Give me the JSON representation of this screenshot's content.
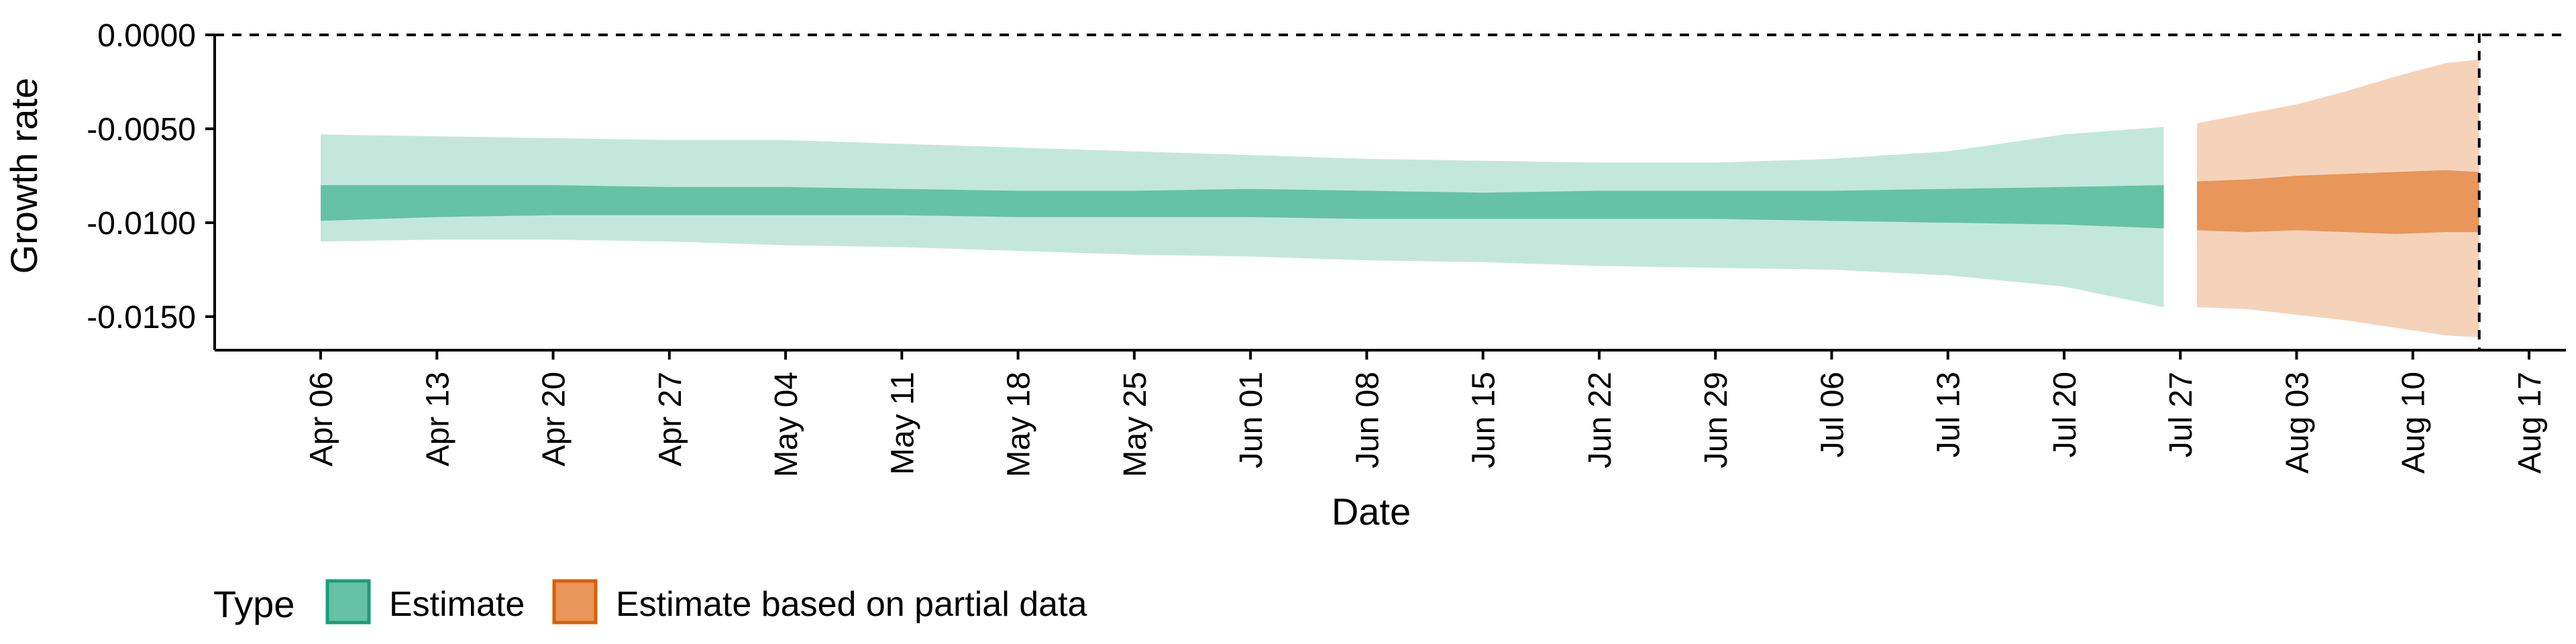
{
  "chart_data": {
    "type": "area",
    "title": "",
    "xlabel": "Date",
    "ylabel": "Growth rate",
    "x_axis": {
      "type": "date",
      "tick_dates": [
        "2020-04-06",
        "2020-04-13",
        "2020-04-20",
        "2020-04-27",
        "2020-05-04",
        "2020-05-11",
        "2020-05-18",
        "2020-05-25",
        "2020-06-01",
        "2020-06-08",
        "2020-06-15",
        "2020-06-22",
        "2020-06-29",
        "2020-07-06",
        "2020-07-13",
        "2020-07-20",
        "2020-07-27",
        "2020-08-03",
        "2020-08-10",
        "2020-08-17"
      ],
      "tick_labels": [
        "Apr 06",
        "Apr 13",
        "Apr 20",
        "Apr 27",
        "May 04",
        "May 11",
        "May 18",
        "May 25",
        "Jun 01",
        "Jun 08",
        "Jun 15",
        "Jun 22",
        "Jun 29",
        "Jul 06",
        "Jul 13",
        "Jul 20",
        "Jul 27",
        "Aug 03",
        "Aug 10",
        "Aug 17"
      ],
      "xlim": [
        "2019-12-13",
        "2020-08-19"
      ]
    },
    "y_axis": {
      "ylim": [
        -0.0168,
        0.0001
      ],
      "ticks": [
        0,
        -0.005,
        -0.01,
        -0.015
      ],
      "tick_labels": [
        "0.0000",
        "-0.0050",
        "-0.0100",
        "-0.0150"
      ]
    },
    "reference_lines": [
      {
        "orientation": "horizontal",
        "y": 0,
        "style": "dashed"
      },
      {
        "orientation": "vertical",
        "x": "2020-08-14",
        "style": "dashed"
      }
    ],
    "legend": {
      "title": "Type",
      "position": "bottom-left",
      "entries": [
        {
          "label": "Estimate",
          "fill": "#66c2a5",
          "border": "#1b9e77"
        },
        {
          "label": "Estimate based on partial data",
          "fill": "#e8965a",
          "border": "#d95f02"
        }
      ]
    },
    "series": [
      {
        "name": "Estimate",
        "inner_color": "#66c2a5",
        "outer_color": "#c4e7dc",
        "points": [
          {
            "x": "2020-04-06",
            "inner": [
              -0.0099,
              -0.008
            ],
            "outer": [
              -0.011,
              -0.0053
            ]
          },
          {
            "x": "2020-04-13",
            "inner": [
              -0.0097,
              -0.008
            ],
            "outer": [
              -0.0109,
              -0.0054
            ]
          },
          {
            "x": "2020-04-20",
            "inner": [
              -0.0096,
              -0.008
            ],
            "outer": [
              -0.0109,
              -0.0055
            ]
          },
          {
            "x": "2020-04-27",
            "inner": [
              -0.0096,
              -0.0081
            ],
            "outer": [
              -0.011,
              -0.0056
            ]
          },
          {
            "x": "2020-05-04",
            "inner": [
              -0.0096,
              -0.0081
            ],
            "outer": [
              -0.0112,
              -0.0056
            ]
          },
          {
            "x": "2020-05-11",
            "inner": [
              -0.0096,
              -0.0082
            ],
            "outer": [
              -0.0113,
              -0.0058
            ]
          },
          {
            "x": "2020-05-18",
            "inner": [
              -0.0097,
              -0.0083
            ],
            "outer": [
              -0.0115,
              -0.006
            ]
          },
          {
            "x": "2020-05-25",
            "inner": [
              -0.0097,
              -0.0083
            ],
            "outer": [
              -0.0117,
              -0.0062
            ]
          },
          {
            "x": "2020-06-01",
            "inner": [
              -0.0097,
              -0.0082
            ],
            "outer": [
              -0.0118,
              -0.0064
            ]
          },
          {
            "x": "2020-06-08",
            "inner": [
              -0.0098,
              -0.0083
            ],
            "outer": [
              -0.012,
              -0.0066
            ]
          },
          {
            "x": "2020-06-15",
            "inner": [
              -0.0098,
              -0.0084
            ],
            "outer": [
              -0.0121,
              -0.0067
            ]
          },
          {
            "x": "2020-06-22",
            "inner": [
              -0.0098,
              -0.0083
            ],
            "outer": [
              -0.0123,
              -0.0068
            ]
          },
          {
            "x": "2020-06-29",
            "inner": [
              -0.0098,
              -0.0083
            ],
            "outer": [
              -0.0124,
              -0.0068
            ]
          },
          {
            "x": "2020-07-06",
            "inner": [
              -0.0099,
              -0.0083
            ],
            "outer": [
              -0.0125,
              -0.0066
            ]
          },
          {
            "x": "2020-07-13",
            "inner": [
              -0.01,
              -0.0082
            ],
            "outer": [
              -0.0128,
              -0.0062
            ]
          },
          {
            "x": "2020-07-20",
            "inner": [
              -0.0101,
              -0.0081
            ],
            "outer": [
              -0.0134,
              -0.0053
            ]
          },
          {
            "x": "2020-07-26",
            "inner": [
              -0.0103,
              -0.008
            ],
            "outer": [
              -0.0145,
              -0.0049
            ]
          }
        ]
      },
      {
        "name": "Estimate based on partial data",
        "inner_color": "#e8965a",
        "outer_color": "#f5d3bb",
        "points": [
          {
            "x": "2020-07-28",
            "inner": [
              -0.0104,
              -0.0078
            ],
            "outer": [
              -0.0145,
              -0.0047
            ]
          },
          {
            "x": "2020-07-31",
            "inner": [
              -0.0105,
              -0.0077
            ],
            "outer": [
              -0.0146,
              -0.0042
            ]
          },
          {
            "x": "2020-08-03",
            "inner": [
              -0.0104,
              -0.0075
            ],
            "outer": [
              -0.0149,
              -0.0037
            ]
          },
          {
            "x": "2020-08-06",
            "inner": [
              -0.0105,
              -0.0074
            ],
            "outer": [
              -0.0152,
              -0.003
            ]
          },
          {
            "x": "2020-08-09",
            "inner": [
              -0.0106,
              -0.0073
            ],
            "outer": [
              -0.0156,
              -0.0022
            ]
          },
          {
            "x": "2020-08-12",
            "inner": [
              -0.0105,
              -0.0072
            ],
            "outer": [
              -0.016,
              -0.0015
            ]
          },
          {
            "x": "2020-08-14",
            "inner": [
              -0.0105,
              -0.0073
            ],
            "outer": [
              -0.0161,
              -0.0013
            ]
          }
        ]
      }
    ]
  }
}
